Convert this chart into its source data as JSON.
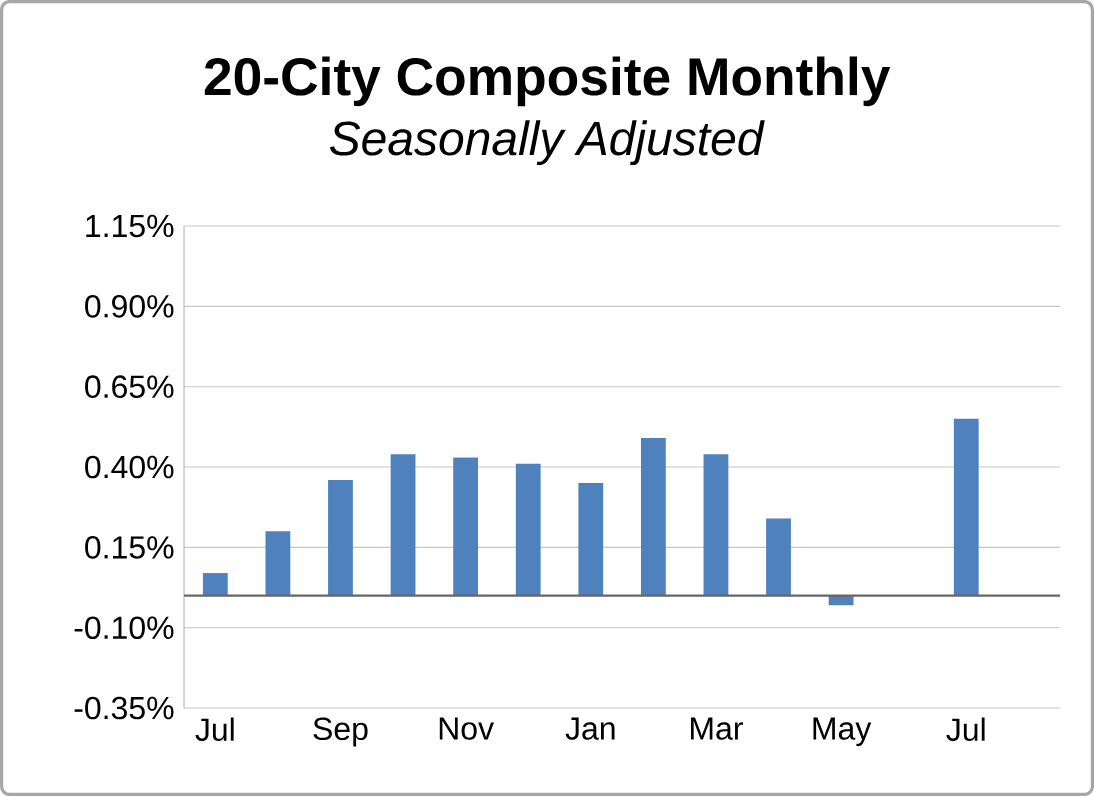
{
  "chart_data": {
    "type": "bar",
    "title": "20-City Composite Monthly",
    "subtitle": "*Seasonally Adjusted*",
    "categories": [
      "Jul",
      null,
      "Sep",
      null,
      "Nov",
      null,
      "Jan",
      null,
      "Mar",
      null,
      "May",
      null,
      "Jul",
      null
    ],
    "values": [
      0.07,
      0.2,
      0.36,
      0.44,
      0.43,
      0.41,
      0.35,
      0.49,
      0.44,
      0.24,
      -0.03,
      0.0,
      0.55,
      null
    ],
    "color": "#4f81bd",
    "ylim": [
      -0.35,
      1.15
    ],
    "yticks": [
      {
        "value": -0.35,
        "label": "-0.35%"
      },
      {
        "value": -0.1,
        "label": "-0.10%"
      },
      {
        "value": 0.15,
        "label": "0.15%"
      },
      {
        "value": 0.4,
        "label": "0.40%"
      },
      {
        "value": 0.65,
        "label": "0.65%"
      },
      {
        "value": 0.9,
        "label": "0.90%"
      },
      {
        "value": 1.15,
        "label": "1.15%"
      }
    ],
    "grid": "y"
  }
}
